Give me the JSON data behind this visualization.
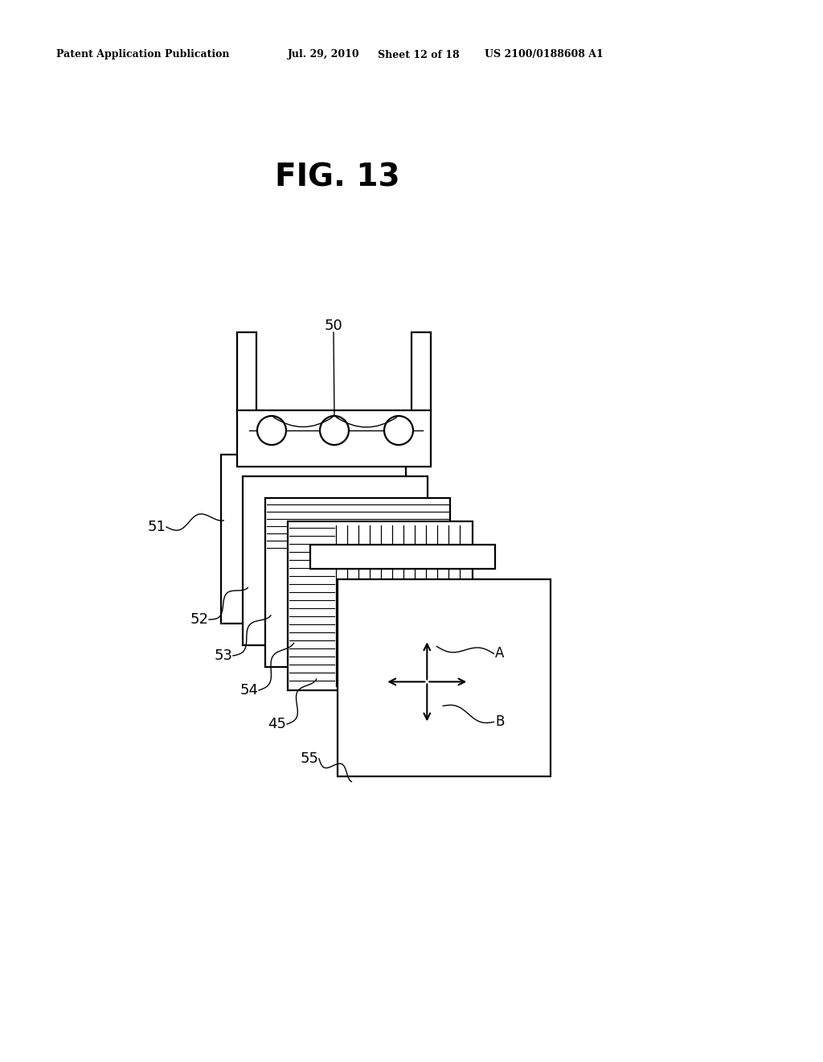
{
  "bg_color": "#ffffff",
  "header_left": "Patent Application Publication",
  "header_mid1": "Jul. 29, 2010",
  "header_mid2": "Sheet 12 of 18",
  "header_right": "US 2100/0188608 A1",
  "fig_title": "FIG. 13",
  "lamp_label": "50",
  "layer_labels": [
    "51",
    "52",
    "53",
    "54",
    "45",
    "55"
  ],
  "arrow_labels": [
    "A",
    "B"
  ]
}
